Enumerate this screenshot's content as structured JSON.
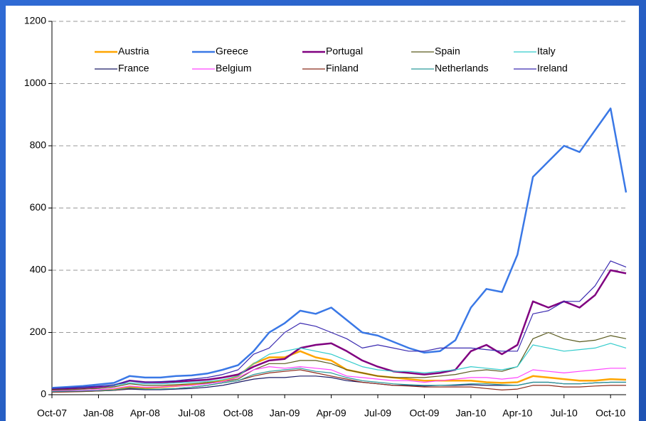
{
  "chart_data": {
    "type": "line",
    "x": [
      0,
      1,
      2,
      3,
      4,
      5,
      6,
      7,
      8,
      9,
      10,
      11,
      12,
      13,
      14,
      15,
      16,
      17,
      18,
      19,
      20,
      21,
      22,
      23,
      24,
      25,
      26,
      27,
      28,
      29,
      30,
      31,
      32,
      33,
      34,
      35,
      36,
      37
    ],
    "xlim": [
      0,
      37
    ],
    "xticks": [
      {
        "value": 0,
        "label": "Oct-07"
      },
      {
        "value": 3,
        "label": "Jan-08"
      },
      {
        "value": 6,
        "label": "Apr-08"
      },
      {
        "value": 9,
        "label": "Jul-08"
      },
      {
        "value": 12,
        "label": "Oct-08"
      },
      {
        "value": 15,
        "label": "Jan-09"
      },
      {
        "value": 18,
        "label": "Apr-09"
      },
      {
        "value": 21,
        "label": "Jul-09"
      },
      {
        "value": 24,
        "label": "Oct-09"
      },
      {
        "value": 27,
        "label": "Jan-10"
      },
      {
        "value": 30,
        "label": "Apr-10"
      },
      {
        "value": 33,
        "label": "Jul-10"
      },
      {
        "value": 36,
        "label": "Oct-10"
      }
    ],
    "ylim": [
      0,
      1200
    ],
    "yticks": [
      0,
      200,
      400,
      600,
      800,
      1000,
      1200
    ],
    "grid": true,
    "series": [
      {
        "name": "Austria",
        "color": "#ffa500",
        "width": 2.5,
        "values": [
          10,
          11,
          12,
          14,
          18,
          25,
          22,
          24,
          28,
          32,
          38,
          45,
          60,
          100,
          120,
          120,
          140,
          120,
          110,
          80,
          70,
          60,
          55,
          50,
          45,
          45,
          45,
          45,
          40,
          38,
          40,
          60,
          55,
          50,
          45,
          45,
          50,
          48
        ]
      },
      {
        "name": "Greece",
        "color": "#3a78e6",
        "width": 2.5,
        "values": [
          22,
          25,
          28,
          33,
          38,
          60,
          55,
          55,
          60,
          62,
          68,
          80,
          95,
          140,
          200,
          230,
          270,
          260,
          280,
          240,
          200,
          190,
          170,
          150,
          135,
          140,
          175,
          280,
          340,
          330,
          450,
          700,
          750,
          800,
          780,
          850,
          920,
          650
        ]
      },
      {
        "name": "Portugal",
        "color": "#800080",
        "width": 2.5,
        "values": [
          18,
          20,
          22,
          25,
          30,
          45,
          40,
          40,
          42,
          45,
          48,
          55,
          65,
          90,
          110,
          115,
          150,
          160,
          165,
          140,
          110,
          90,
          75,
          70,
          65,
          70,
          80,
          140,
          160,
          130,
          160,
          300,
          280,
          300,
          280,
          320,
          400,
          390
        ]
      },
      {
        "name": "Spain",
        "color": "#5a5a1e",
        "width": 1.2,
        "values": [
          15,
          16,
          18,
          20,
          25,
          35,
          30,
          30,
          32,
          35,
          38,
          42,
          50,
          80,
          100,
          100,
          110,
          110,
          100,
          80,
          70,
          60,
          55,
          55,
          55,
          60,
          65,
          75,
          80,
          75,
          90,
          180,
          200,
          180,
          170,
          175,
          190,
          180
        ]
      },
      {
        "name": "Italy",
        "color": "#33cccc",
        "width": 1.2,
        "values": [
          20,
          22,
          24,
          28,
          30,
          38,
          35,
          35,
          38,
          40,
          42,
          48,
          60,
          100,
          130,
          140,
          150,
          140,
          130,
          110,
          90,
          80,
          75,
          75,
          70,
          75,
          80,
          90,
          85,
          80,
          90,
          160,
          150,
          140,
          145,
          150,
          165,
          150
        ]
      },
      {
        "name": "France",
        "color": "#1a1a66",
        "width": 1.2,
        "values": [
          10,
          10,
          11,
          12,
          14,
          18,
          16,
          16,
          18,
          20,
          24,
          30,
          40,
          50,
          55,
          55,
          60,
          60,
          55,
          45,
          40,
          35,
          30,
          30,
          28,
          30,
          30,
          32,
          30,
          30,
          30,
          40,
          40,
          35,
          35,
          38,
          40,
          40
        ]
      },
      {
        "name": "Belgium",
        "color": "#ff44ff",
        "width": 1.2,
        "values": [
          12,
          13,
          14,
          16,
          20,
          28,
          24,
          25,
          28,
          30,
          35,
          42,
          55,
          80,
          90,
          85,
          90,
          85,
          80,
          60,
          55,
          50,
          45,
          45,
          40,
          45,
          50,
          55,
          55,
          50,
          55,
          80,
          75,
          70,
          75,
          80,
          85,
          85
        ]
      },
      {
        "name": "Finland",
        "color": "#8b2a1a",
        "width": 1.2,
        "values": [
          8,
          9,
          10,
          12,
          14,
          20,
          18,
          18,
          20,
          24,
          30,
          38,
          45,
          60,
          70,
          75,
          80,
          70,
          60,
          50,
          40,
          35,
          30,
          28,
          25,
          25,
          25,
          25,
          20,
          15,
          18,
          30,
          30,
          25,
          25,
          28,
          30,
          30
        ]
      },
      {
        "name": "Netherlands",
        "color": "#2a9a9a",
        "width": 1.2,
        "values": [
          10,
          11,
          12,
          13,
          15,
          22,
          18,
          18,
          20,
          24,
          30,
          38,
          45,
          65,
          75,
          80,
          85,
          75,
          70,
          55,
          45,
          40,
          35,
          32,
          30,
          30,
          32,
          35,
          35,
          32,
          30,
          40,
          40,
          35,
          35,
          38,
          40,
          40
        ]
      },
      {
        "name": "Ireland",
        "color": "#3a2ab0",
        "width": 1.2,
        "values": [
          20,
          22,
          25,
          28,
          32,
          45,
          40,
          42,
          45,
          50,
          55,
          65,
          80,
          130,
          150,
          200,
          230,
          220,
          200,
          180,
          150,
          160,
          150,
          140,
          140,
          150,
          150,
          150,
          145,
          140,
          140,
          260,
          270,
          300,
          300,
          350,
          430,
          410
        ]
      }
    ]
  }
}
